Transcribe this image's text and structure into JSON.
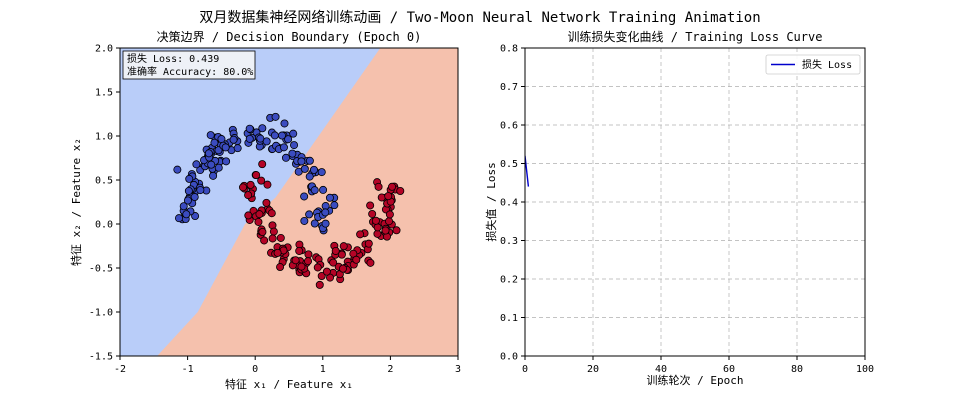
{
  "figure": {
    "suptitle": "双月数据集神经网络训练动画 / Two-Moon Neural Network Training Animation"
  },
  "chart_data": [
    {
      "type": "scatter",
      "title": "决策边界 / Decision Boundary (Epoch 0)",
      "xlabel": "特征 x₁ / Feature x₁",
      "ylabel": "特征 x₂ / Feature x₂",
      "xlim": [
        -2,
        3
      ],
      "ylim": [
        -1.5,
        2.0
      ],
      "xticks": [
        -2,
        -1,
        0,
        1,
        2,
        3
      ],
      "yticks": [
        -1.5,
        -1.0,
        -0.5,
        0.0,
        0.5,
        1.0,
        1.5,
        2.0
      ],
      "grid": false,
      "annotation": {
        "loss_text": "损失 Loss: 0.439",
        "accuracy_text": "准确率 Accuracy: 80.0%"
      },
      "region_colors": {
        "class_0": "#b9cdf9",
        "class_1": "#f5c1ad"
      },
      "decision_boundary": [
        [
          -1.45,
          -1.5
        ],
        [
          -0.85,
          -1.0
        ],
        [
          -0.15,
          0.0
        ],
        [
          0.3,
          0.3
        ],
        [
          1.85,
          2.0
        ]
      ],
      "series": [
        {
          "class": 0,
          "color": "#3b4cc0",
          "moon": {
            "center": [
              0,
              0
            ],
            "radius": 1.0,
            "arc_deg": [
              0,
              180
            ],
            "noise": 0.1,
            "count": 150
          }
        },
        {
          "class": 1,
          "color": "#b40426",
          "moon": {
            "center": [
              1,
              0.5
            ],
            "radius": 1.0,
            "arc_deg": [
              180,
              360
            ],
            "noise": 0.1,
            "count": 150
          }
        }
      ]
    },
    {
      "type": "line",
      "title": "训练损失变化曲线 / Training Loss Curve",
      "xlabel": "训练轮次 / Epoch",
      "ylabel": "损失值 / Loss",
      "xlim": [
        0,
        100
      ],
      "ylim": [
        0.0,
        0.8
      ],
      "xticks": [
        0,
        20,
        40,
        60,
        80,
        100
      ],
      "yticks": [
        0.0,
        0.1,
        0.2,
        0.3,
        0.4,
        0.5,
        0.6,
        0.7,
        0.8
      ],
      "grid": true,
      "legend": "top-right",
      "series": [
        {
          "name": "损失 Loss",
          "color": "#0000cc",
          "x": [
            0,
            1
          ],
          "y": [
            0.52,
            0.44
          ]
        }
      ]
    }
  ]
}
